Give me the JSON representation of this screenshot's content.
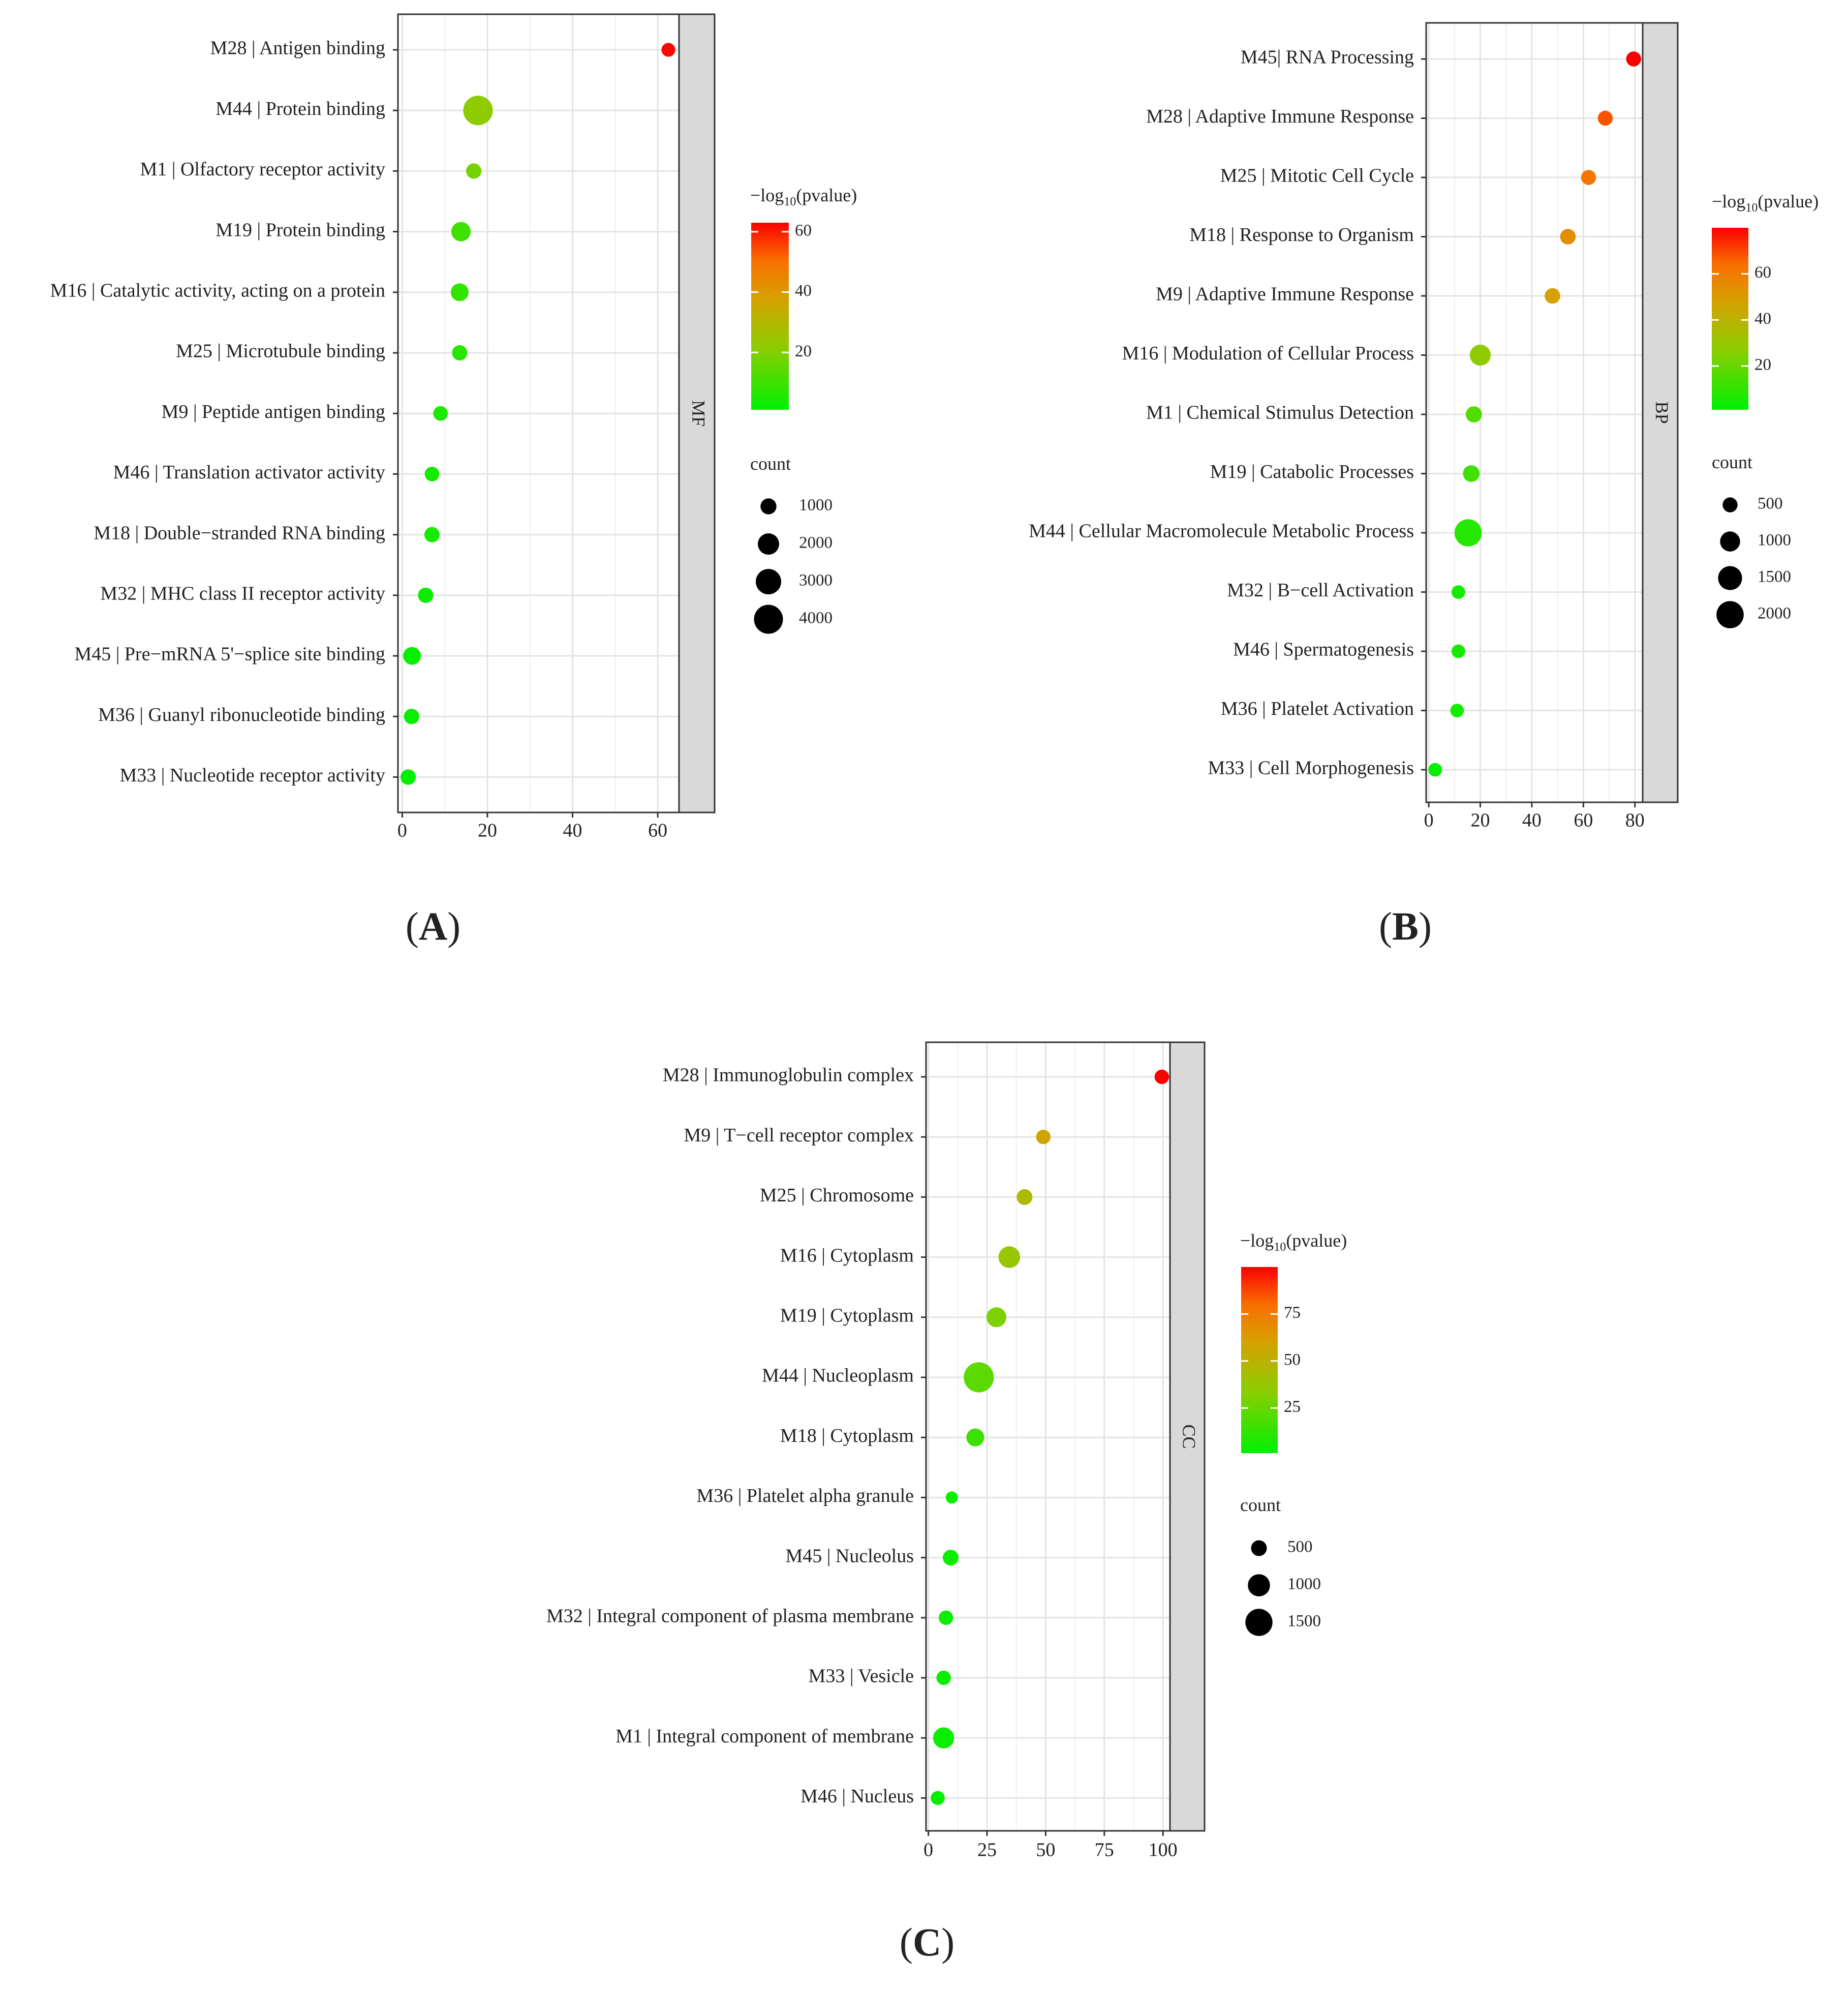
{
  "figure": {
    "panel_labels": [
      {
        "open": "(",
        "letter": "A",
        "close": ")"
      },
      {
        "open": "(",
        "letter": "B",
        "close": ")"
      },
      {
        "open": "(",
        "letter": "C",
        "close": ")"
      }
    ],
    "legend_color_title_prefix": "−log",
    "legend_color_title_sub": "10",
    "legend_color_title_suffix": "(pvalue)",
    "legend_size_title": "count"
  },
  "chart_data": [
    {
      "type": "scatter",
      "panel": "A",
      "facet": "MF",
      "categories": [
        "M28 | Antigen binding",
        "M44 | Protein binding",
        "M1 | Olfactory receptor activity",
        "M19 | Protein binding",
        "M16 | Catalytic activity, acting on a protein",
        "M25 | Microtubule binding",
        "M9 | Peptide antigen binding",
        "M46 | Translation activator activity",
        "M18 | Double−stranded RNA binding",
        "M32 | MHC class II receptor activity",
        "M45 | Pre−mRNA 5'−splice site binding",
        "M36 | Guanyl ribonucleotide binding",
        "M33 | Nucleotide receptor activity"
      ],
      "x": [
        62.5,
        17.8,
        16.8,
        13.8,
        13.5,
        13.5,
        9,
        7,
        7,
        5.5,
        2.3,
        2.2,
        1.4
      ],
      "size": [
        700,
        4200,
        900,
        1600,
        1300,
        900,
        800,
        800,
        900,
        900,
        1300,
        900,
        900
      ],
      "color": [
        62,
        22,
        18,
        10,
        8,
        7,
        5,
        4,
        4,
        3,
        2,
        2,
        1
      ],
      "xlim": [
        -1,
        65
      ],
      "xticks": [
        0,
        20,
        40,
        60
      ],
      "color_range": [
        1,
        63
      ],
      "color_ticks": [
        20,
        40,
        60
      ],
      "size_range": [
        500,
        4500
      ],
      "size_legend": [
        1000,
        2000,
        3000,
        4000
      ]
    },
    {
      "type": "scatter",
      "panel": "B",
      "facet": "BP",
      "categories": [
        "M45| RNA Processing",
        "M28 | Adaptive Immune Response",
        "M25 | Mitotic Cell Cycle",
        "M18 | Response to Organism",
        "M9 | Adaptive Immune Response",
        "M16 | Modulation of Cellular Process",
        "M1 | Chemical Stimulus Detection",
        "M19 | Catabolic Processes",
        "M44 | Cellular Macromolecule Metabolic Process",
        "M32 | B−cell Activation",
        "M46 | Spermatogenesis",
        "M36 | Platelet Activation",
        "M33 | Cell Morphogenesis"
      ],
      "x": [
        79.5,
        68.5,
        62,
        54,
        48,
        20,
        17.5,
        16.5,
        15.3,
        11.5,
        11.5,
        11,
        2.5
      ],
      "size": [
        500,
        500,
        500,
        550,
        550,
        1100,
        600,
        650,
        2000,
        400,
        400,
        400,
        400
      ],
      "color": [
        80,
        68,
        62,
        54,
        48,
        28,
        16,
        13,
        8,
        5,
        5,
        5,
        2
      ],
      "xlim": [
        -1,
        83
      ],
      "xticks": [
        0,
        20,
        40,
        60,
        80
      ],
      "color_range": [
        1,
        80
      ],
      "color_ticks": [
        20,
        40,
        60
      ],
      "size_range": [
        300,
        2200
      ],
      "size_legend": [
        500,
        1000,
        1500,
        2000
      ]
    },
    {
      "type": "scatter",
      "panel": "C",
      "facet": "CC",
      "categories": [
        "M28 | Immunoglobulin complex",
        "M9 | T−cell receptor complex",
        "M25 | Chromosome",
        "M16 | Cytoplasm",
        "M19 | Cytoplasm",
        "M44 | Nucleoplasm",
        "M18 | Cytoplasm",
        "M36 | Platelet alpha granule",
        "M45 | Nucleolus",
        "M32 | Integral component of plasma membrane",
        "M33 | Vesicle",
        "M1 | Integral component of membrane",
        "M46 | Nucleus"
      ],
      "x": [
        99.5,
        49,
        41,
        34.5,
        29,
        21.5,
        20,
        10,
        9.5,
        7.5,
        6.5,
        6.5,
        4
      ],
      "size": [
        420,
        420,
        500,
        950,
        800,
        1850,
        650,
        300,
        500,
        420,
        420,
        900,
        400
      ],
      "color": [
        100,
        58,
        45,
        38,
        30,
        22,
        15,
        4,
        4,
        4,
        3,
        3,
        2
      ],
      "xlim": [
        -1,
        103
      ],
      "xticks": [
        0,
        25,
        50,
        75,
        100
      ],
      "color_range": [
        1,
        100
      ],
      "color_ticks": [
        25,
        50,
        75
      ],
      "size_range": [
        300,
        1900
      ],
      "size_legend": [
        500,
        1000,
        1500
      ]
    }
  ]
}
